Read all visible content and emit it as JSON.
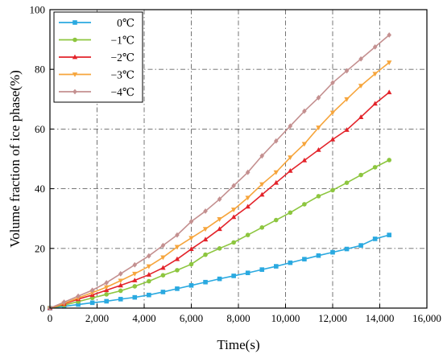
{
  "chart_data": {
    "type": "line",
    "xlabel": "Time(s)",
    "ylabel": "Volume fraction of ice phase(%)",
    "xlim": [
      0,
      16000
    ],
    "ylim": [
      0,
      100
    ],
    "xticks": [
      0,
      2000,
      4000,
      6000,
      8000,
      10000,
      12000,
      14000,
      16000
    ],
    "xtick_labels": [
      "0",
      "2,000",
      "4,000",
      "6,000",
      "8,000",
      "10,000",
      "12,000",
      "14,000",
      "16,000"
    ],
    "yticks": [
      0,
      20,
      40,
      60,
      80,
      100
    ],
    "ytick_labels": [
      "0",
      "20",
      "40",
      "60",
      "80",
      "100"
    ],
    "grid": true,
    "legend_position": "top-left",
    "series": [
      {
        "name": "0℃",
        "color": "#2aa9e0",
        "marker": "square",
        "x": [
          0,
          600,
          1200,
          1800,
          2400,
          3000,
          3600,
          4200,
          4800,
          5400,
          6000,
          6600,
          7200,
          7800,
          8400,
          9000,
          9600,
          10200,
          10800,
          11400,
          12000,
          12600,
          13200,
          13800,
          14400
        ],
        "y": [
          0,
          0.6,
          1.2,
          1.8,
          2.3,
          3.0,
          3.6,
          4.4,
          5.4,
          6.5,
          7.6,
          8.7,
          9.8,
          10.8,
          11.8,
          12.9,
          14.0,
          15.2,
          16.4,
          17.6,
          18.7,
          19.8,
          21.0,
          23.2,
          24.5
        ]
      },
      {
        "name": "−1℃",
        "color": "#8dc63f",
        "marker": "circle",
        "x": [
          0,
          600,
          1200,
          1800,
          2400,
          3000,
          3600,
          4200,
          4800,
          5400,
          6000,
          6600,
          7200,
          7800,
          8400,
          9000,
          9600,
          10200,
          10800,
          11400,
          12000,
          12600,
          13200,
          13800,
          14400
        ],
        "y": [
          0,
          1.0,
          2.2,
          3.4,
          4.6,
          5.8,
          7.3,
          9.0,
          11.0,
          12.7,
          14.7,
          17.9,
          20.0,
          22.0,
          24.5,
          27.0,
          29.5,
          32.0,
          34.8,
          37.5,
          39.5,
          42.0,
          44.6,
          47.2,
          49.6
        ]
      },
      {
        "name": "−2℃",
        "color": "#e3232a",
        "marker": "triangle",
        "x": [
          0,
          600,
          1200,
          1800,
          2400,
          3000,
          3600,
          4200,
          4800,
          5400,
          6000,
          6600,
          7200,
          7800,
          8400,
          9000,
          9600,
          10200,
          10800,
          11400,
          12000,
          12600,
          13200,
          13800,
          14400
        ],
        "y": [
          0,
          1.4,
          3.0,
          4.4,
          6.0,
          7.6,
          9.3,
          11.2,
          13.5,
          16.4,
          19.8,
          23.0,
          26.5,
          30.5,
          34.0,
          38.0,
          42.0,
          46.0,
          49.5,
          53.0,
          56.5,
          59.7,
          64.0,
          68.5,
          72.3
        ]
      },
      {
        "name": "−3℃",
        "color": "#f6a53c",
        "marker": "down-triangle",
        "x": [
          0,
          600,
          1200,
          1800,
          2400,
          3000,
          3600,
          4200,
          4800,
          5400,
          6000,
          6600,
          7200,
          7800,
          8400,
          9000,
          9600,
          10200,
          10800,
          11400,
          12000,
          12600,
          13200,
          13800,
          14400
        ],
        "y": [
          0,
          1.6,
          3.4,
          5.2,
          7.0,
          9.2,
          11.5,
          14.0,
          17.0,
          20.5,
          23.5,
          26.5,
          29.8,
          33.0,
          37.0,
          41.5,
          45.5,
          50.5,
          55.0,
          60.5,
          65.5,
          70.0,
          74.5,
          78.5,
          82.3
        ]
      },
      {
        "name": "−4℃",
        "color": "#c49090",
        "marker": "diamond",
        "x": [
          0,
          600,
          1200,
          1800,
          2400,
          3000,
          3600,
          4200,
          4800,
          5400,
          6000,
          6600,
          7200,
          7800,
          8400,
          9000,
          9600,
          10200,
          10800,
          11400,
          12000,
          12600,
          13200,
          13800,
          14400
        ],
        "y": [
          0,
          2.0,
          4.0,
          6.0,
          8.5,
          11.5,
          14.5,
          17.5,
          21.0,
          24.5,
          29.0,
          32.5,
          36.5,
          41.0,
          45.5,
          51.0,
          56.0,
          61.0,
          66.0,
          70.5,
          75.5,
          79.5,
          83.5,
          87.5,
          91.5
        ]
      }
    ]
  }
}
